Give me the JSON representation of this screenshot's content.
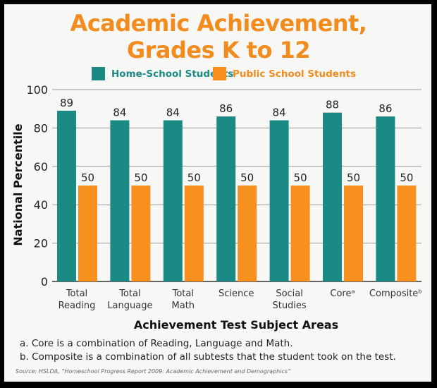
{
  "chart_data": {
    "type": "bar",
    "title": "Academic Achievement,",
    "subtitle": "Grades K to 12",
    "categories": [
      [
        "Total",
        "Reading"
      ],
      [
        "Total",
        "Language"
      ],
      [
        "Total",
        "Math"
      ],
      [
        "Science",
        ""
      ],
      [
        "Social",
        "Studies"
      ],
      [
        "Coreᵃ",
        ""
      ],
      [
        "Compositeᵇ",
        ""
      ]
    ],
    "series": [
      {
        "name": "Home-School Students",
        "color": "#1c8a84",
        "values": [
          89,
          84,
          84,
          86,
          84,
          88,
          86
        ]
      },
      {
        "name": "Public School Students",
        "color": "#f7901e",
        "values": [
          50,
          50,
          50,
          50,
          50,
          50,
          50
        ]
      }
    ],
    "xlabel": "Achievement Test Subject Areas",
    "ylabel": "National Percentile",
    "ylim": [
      0,
      100
    ],
    "yticks": [
      0,
      20,
      40,
      60,
      80,
      100
    ],
    "grid": true,
    "legend": "top"
  },
  "footnotes": [
    "a. Core is a combination of Reading, Language and Math.",
    "b. Composite is a combination of all subtests that the student took on the test."
  ],
  "source": "Source: HSLDA, “Homeschool Progress Report 2009: Academic Achievement and Demographics”"
}
